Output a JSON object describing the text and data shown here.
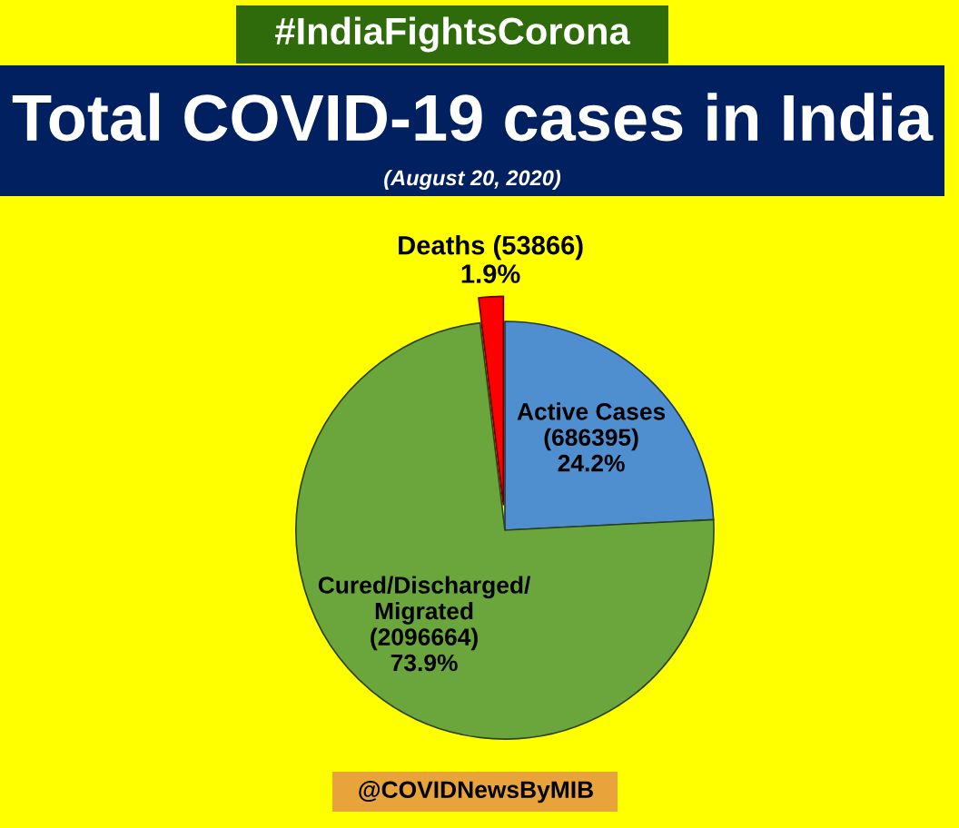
{
  "chart_data": {
    "type": "pie",
    "title": "Total COVID-19 cases in India",
    "subtitle": "(August 20, 2020)",
    "categories": [
      "Active Cases",
      "Cured/Discharged/\nMigrated",
      "Deaths"
    ],
    "values": [
      686395,
      2096664,
      53866
    ],
    "colors": [
      "#4f8fd0",
      "#6aa63b",
      "#ff0000"
    ],
    "value_labels": [
      "(686395)\n24.2%",
      "(2096664)\n73.9%",
      "(53866)\n1.9%"
    ],
    "annotations": [
      "#IndiaFightsCorona",
      "@COVIDNewsByMIB"
    ]
  }
}
